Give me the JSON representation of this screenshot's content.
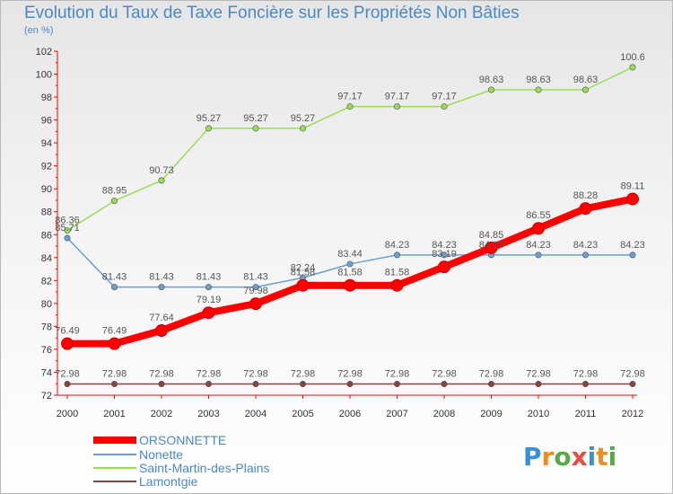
{
  "chart_data": {
    "type": "line",
    "title": "Evolution du Taux de Taxe Foncière sur les Propriétés Non Bâties",
    "subtitle": "(en %)",
    "x": [
      "2000",
      "2001",
      "2002",
      "2003",
      "2004",
      "2005",
      "2006",
      "2007",
      "2008",
      "2009",
      "2010",
      "2011",
      "2012"
    ],
    "ylim": [
      72,
      102
    ],
    "yticks": [
      "72",
      "74",
      "76",
      "78",
      "80",
      "82",
      "84",
      "86",
      "88",
      "90",
      "92",
      "94",
      "96",
      "98",
      "100",
      "102"
    ],
    "grid": false,
    "legend_position": "bottom-left",
    "series": [
      {
        "name": "ORSONNETTE",
        "color": "#ff0000",
        "width": "thick",
        "values": [
          76.49,
          76.49,
          77.64,
          79.19,
          79.98,
          81.58,
          81.58,
          81.58,
          83.19,
          84.85,
          86.55,
          88.28,
          89.11
        ],
        "labels": [
          "76.49",
          "76.49",
          "77.64",
          "79.19",
          "79.98",
          "81.58",
          "81.58",
          "81.58",
          "83.19",
          "84.85",
          "86.55",
          "88.28",
          "89.11"
        ]
      },
      {
        "name": "Nonette",
        "color": "#6a9fd6",
        "width": "thin",
        "values": [
          85.71,
          81.43,
          81.43,
          81.43,
          81.43,
          82.24,
          83.44,
          84.23,
          84.23,
          84.23,
          84.23,
          84.23,
          84.23
        ],
        "labels": [
          "85.71",
          "81.43",
          "81.43",
          "81.43",
          "81.43",
          "82.24",
          "83.44",
          "84.23",
          "84.23",
          "84.23",
          "84.23",
          "84.23",
          "84.23"
        ]
      },
      {
        "name": "Saint-Martin-des-Plains",
        "color": "#99dd55",
        "width": "thin",
        "values": [
          86.36,
          88.95,
          90.73,
          95.27,
          95.27,
          95.27,
          97.17,
          97.17,
          97.17,
          98.63,
          98.63,
          98.63,
          100.6
        ],
        "labels": [
          "86.36",
          "88.95",
          "90.73",
          "95.27",
          "95.27",
          "95.27",
          "97.17",
          "97.17",
          "97.17",
          "98.63",
          "98.63",
          "98.63",
          "100.6"
        ]
      },
      {
        "name": "Lamontgie",
        "color": "#884444",
        "width": "thin",
        "values": [
          72.98,
          72.98,
          72.98,
          72.98,
          72.98,
          72.98,
          72.98,
          72.98,
          72.98,
          72.98,
          72.98,
          72.98,
          72.98
        ],
        "labels": [
          "72.98",
          "72.98",
          "72.98",
          "72.98",
          "72.98",
          "72.98",
          "72.98",
          "72.98",
          "72.98",
          "72.98",
          "72.98",
          "72.98",
          "72.98"
        ]
      }
    ]
  },
  "brand": {
    "text": "Proxiti"
  }
}
